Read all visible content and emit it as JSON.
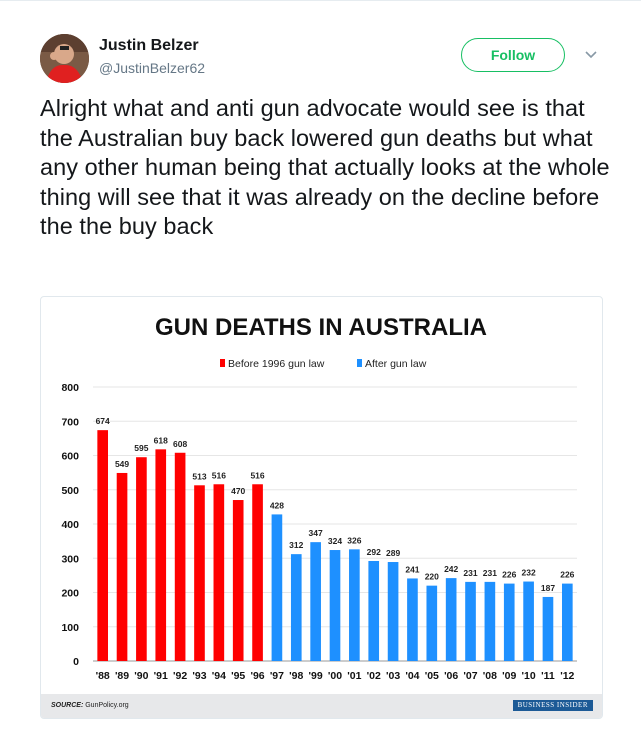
{
  "tweet": {
    "author_name": "Justin Belzer",
    "author_handle": "@JustinBelzer62",
    "follow_label": "Follow",
    "text": "Alright what and anti gun advocate would see is that the Australian buy back lowered gun deaths but what any other human being that actually looks at the whole thing will see that it was already on the decline before the the buy back"
  },
  "chart_data": {
    "type": "bar",
    "title": "GUN DEATHS IN AUSTRALIA",
    "categories": [
      "'88",
      "'89",
      "'90",
      "'91",
      "'92",
      "'93",
      "'94",
      "'95",
      "'96",
      "'97",
      "'98",
      "'99",
      "'00",
      "'01",
      "'02",
      "'03",
      "'04",
      "'05",
      "'06",
      "'07",
      "'08",
      "'09",
      "'10",
      "'11",
      "'12"
    ],
    "values": [
      674,
      549,
      595,
      618,
      608,
      513,
      516,
      470,
      516,
      428,
      312,
      347,
      324,
      326,
      292,
      289,
      241,
      220,
      242,
      231,
      231,
      226,
      232,
      187,
      226
    ],
    "series": [
      {
        "name": "Before 1996 gun law",
        "color": "#ff0000",
        "range": [
          "'88",
          "'96"
        ]
      },
      {
        "name": "After gun law",
        "color": "#1e90ff",
        "range": [
          "'97",
          "'12"
        ]
      }
    ],
    "split_index": 9,
    "yticks": [
      "0",
      "100",
      "200",
      "300",
      "400",
      "500",
      "600",
      "700",
      "800"
    ],
    "ylim": [
      0,
      800
    ],
    "grid": true,
    "legend_position": "top-center",
    "source_label": "SOURCE:",
    "source_value": "GunPolicy.org",
    "brand": "BUSINESS INSIDER"
  }
}
